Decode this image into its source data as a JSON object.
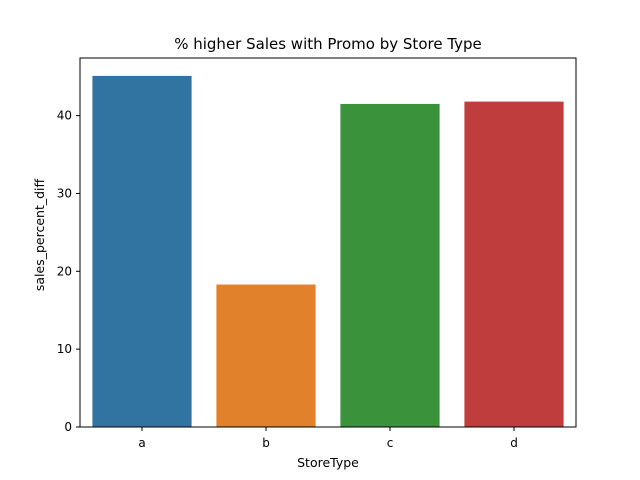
{
  "chart_data": {
    "type": "bar",
    "title": "% higher Sales with Promo by Store Type",
    "xlabel": "StoreType",
    "ylabel": "sales_percent_diff",
    "categories": [
      "a",
      "b",
      "c",
      "d"
    ],
    "values": [
      45.1,
      18.3,
      41.5,
      41.8
    ],
    "colors": [
      "#3274a1",
      "#e1812c",
      "#3a923a",
      "#c03d3e"
    ],
    "ylim": [
      0,
      47.4
    ],
    "yticks": [
      0,
      10,
      20,
      30,
      40
    ],
    "grid": false,
    "legend": "none"
  }
}
